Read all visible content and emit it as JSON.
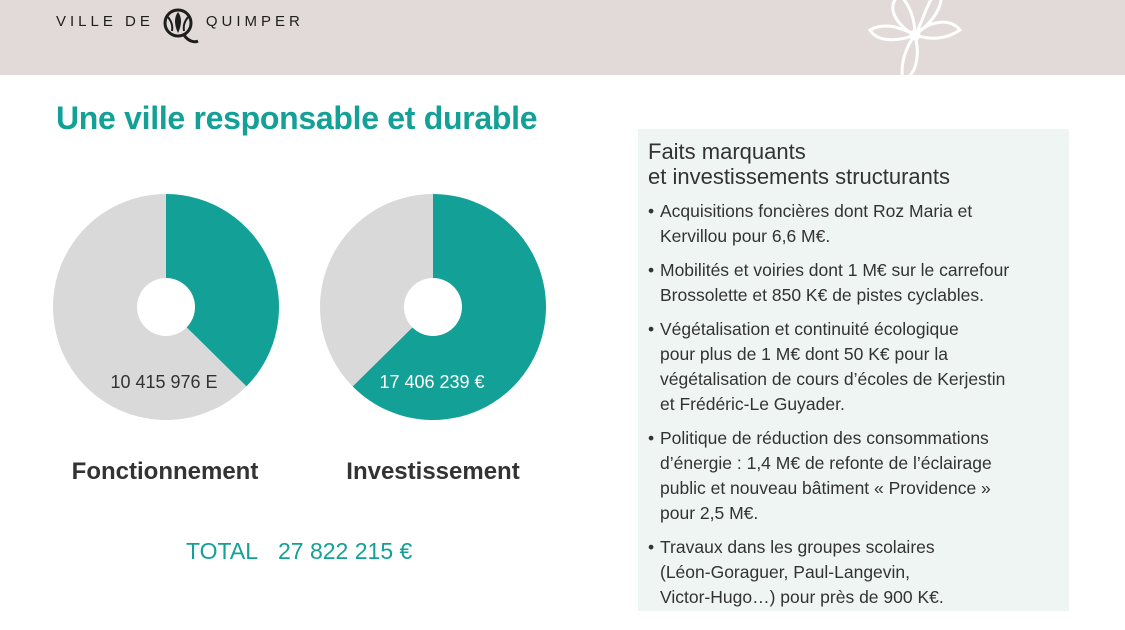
{
  "header": {
    "logo_left": "VILLE DE",
    "logo_right": "QUIMPER"
  },
  "title": "Une ville responsable et durable",
  "chart_data": [
    {
      "type": "pie",
      "name_label": "Fonctionnement",
      "value_label": "10 415 976 E",
      "slices": [
        {
          "share": 0.374,
          "color": "#12a097"
        },
        {
          "share": 0.626,
          "color": "#d9d9d9"
        }
      ]
    },
    {
      "type": "pie",
      "name_label": "Investissement",
      "value_label": "17 406 239 €",
      "slices": [
        {
          "share": 0.626,
          "color": "#12a097"
        },
        {
          "share": 0.374,
          "color": "#d9d9d9"
        }
      ]
    }
  ],
  "total": {
    "label": "TOTAL",
    "value": "27 822 215 €"
  },
  "panel": {
    "title_line1": "Faits marquants",
    "title_line2": "et investissements structurants",
    "items": [
      [
        "Acquisitions foncières dont Roz Maria et",
        "Kervillou pour 6,6 M€."
      ],
      [
        "Mobilités et voiries dont 1 M€ sur le carrefour",
        "Brossolette et 850 K€ de pistes cyclables."
      ],
      [
        "Végétalisation et continuité écologique",
        "pour plus de 1 M€ dont 50 K€ pour la",
        "végétalisation de cours d’écoles de Kerjestin",
        "et Frédéric-Le Guyader."
      ],
      [
        "Politique de réduction des consommations",
        "d’énergie : 1,4 M€ de refonte de l’éclairage",
        "public et nouveau bâtiment « Providence »",
        "pour 2,5 M€."
      ],
      [
        "Travaux dans les groupes scolaires",
        "(Léon-Goraguer, Paul-Langevin,",
        "Victor-Hugo…) pour près de 900 K€."
      ]
    ]
  },
  "colors": {
    "accent": "#12a097",
    "pie_grey": "#d9d9d9",
    "header_bg": "#e2dad8",
    "panel_bg": "#eef5f3"
  }
}
